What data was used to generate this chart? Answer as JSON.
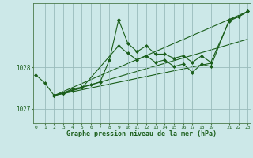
{
  "xlabel": "Graphe pression niveau de la mer (hPa)",
  "bg_color": "#cce8e8",
  "plot_bg_color": "#cce8e8",
  "grid_color": "#99bbbb",
  "line_color": "#1a5e1a",
  "ylim": [
    1026.65,
    1029.55
  ],
  "xlim": [
    -0.3,
    23.3
  ],
  "yticks": [
    1027,
    1028
  ],
  "xticks": [
    0,
    1,
    2,
    3,
    4,
    5,
    6,
    7,
    8,
    9,
    10,
    11,
    12,
    13,
    14,
    15,
    16,
    17,
    18,
    19,
    21,
    22,
    23
  ],
  "series1_x": [
    0,
    1,
    2,
    3,
    4,
    5,
    6,
    7,
    8,
    9,
    10,
    11,
    12,
    13,
    14,
    15,
    16,
    17,
    18,
    19,
    21,
    22,
    23
  ],
  "series1_y": [
    1027.82,
    1027.62,
    1027.32,
    1027.38,
    1027.48,
    1027.52,
    1027.58,
    1027.65,
    1028.18,
    1029.15,
    1028.58,
    1028.38,
    1028.52,
    1028.32,
    1028.32,
    1028.22,
    1028.28,
    1028.12,
    1028.28,
    1028.12,
    1029.12,
    1029.22,
    1029.35
  ],
  "series2_x": [
    2,
    3,
    4,
    5,
    9,
    10,
    11,
    12,
    13,
    14,
    15,
    16,
    17,
    18,
    19,
    21,
    22,
    23
  ],
  "series2_y": [
    1027.32,
    1027.38,
    1027.44,
    1027.5,
    1028.52,
    1028.34,
    1028.18,
    1028.28,
    1028.12,
    1028.18,
    1028.02,
    1028.08,
    1027.88,
    1028.08,
    1028.02,
    1029.15,
    1029.22,
    1029.35
  ],
  "line1_x": [
    2,
    23
  ],
  "line1_y": [
    1027.32,
    1029.35
  ],
  "line2_x": [
    2,
    23
  ],
  "line2_y": [
    1027.32,
    1028.68
  ],
  "line3_x": [
    2,
    19
  ],
  "line3_y": [
    1027.32,
    1028.1
  ]
}
